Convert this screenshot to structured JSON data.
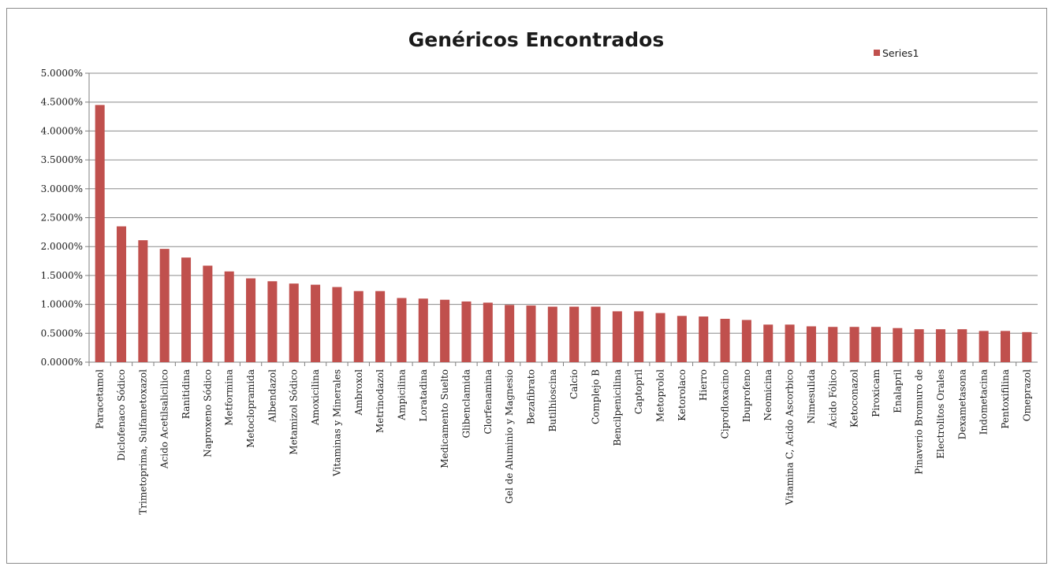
{
  "chart_data": {
    "type": "bar",
    "title": "Genéricos Encontrados",
    "xlabel": "",
    "ylabel": "",
    "ylim": [
      0,
      0.05
    ],
    "y_ticks": [
      "0.0000%",
      "0.5000%",
      "1.0000%",
      "1.5000%",
      "2.0000%",
      "2.5000%",
      "3.0000%",
      "3.5000%",
      "4.0000%",
      "4.5000%",
      "5.0000%"
    ],
    "grid": true,
    "legend_position": "top-right",
    "bar_color": "#c0504d",
    "categories": [
      "Paracetamol",
      "Diclofenaco Sódico",
      "Trimetoprima, Sulfametoxazol",
      "Acido Acetilsalicilico",
      "Ranitidina",
      "Naproxeno Sódico",
      "Metformina",
      "Metoclopramida",
      "Albendazol",
      "Metamizol Sódico",
      "Amoxicilina",
      "Vitaminas y Minerales",
      "Ambroxol",
      "Metrinodazol",
      "Ampicilina",
      "Loratadina",
      "Medicamento Suelto",
      "Glibenclamida",
      "Clorfenamina",
      "Gel de Aluminio y Magnesio",
      "Bezafibrato",
      "Butilhioscina",
      "Calcio",
      "Complejo B",
      "Bencilpenicilina",
      "Captopril",
      "Metoprolol",
      "Ketorolaco",
      "Hierro",
      "Ciprofloxacino",
      "Ibuprofeno",
      "Neomicina",
      "Vitamina C, Acido Ascorbico",
      "Nimesulida",
      "Ácido Fólico",
      "Ketoconazol",
      "Piroxicam",
      "Enalapril",
      "Pinaverio Bromuro de",
      "Electrolitos Orales",
      "Dexametasona",
      "Indometacina",
      "Pentoxifilina",
      "Omeprazol"
    ],
    "series": [
      {
        "name": "Series1",
        "values": [
          0.0445,
          0.0235,
          0.0211,
          0.0196,
          0.0181,
          0.0167,
          0.0157,
          0.0145,
          0.014,
          0.0136,
          0.0134,
          0.013,
          0.0123,
          0.0123,
          0.0111,
          0.011,
          0.0108,
          0.0105,
          0.0103,
          0.0099,
          0.0098,
          0.0096,
          0.0096,
          0.0096,
          0.0088,
          0.0088,
          0.0085,
          0.008,
          0.0079,
          0.0075,
          0.0073,
          0.0065,
          0.0065,
          0.0062,
          0.0061,
          0.0061,
          0.0061,
          0.0059,
          0.0057,
          0.0057,
          0.0057,
          0.0054,
          0.0054,
          0.0052
        ]
      }
    ]
  }
}
